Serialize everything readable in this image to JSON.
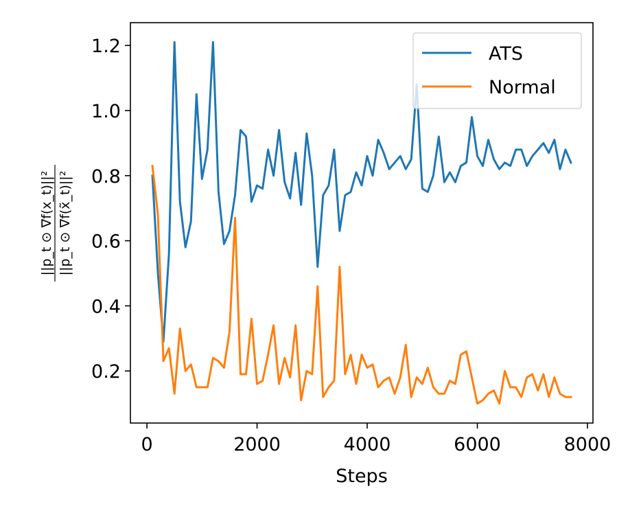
{
  "chart_data": {
    "type": "line",
    "title": "",
    "xlabel": "Steps",
    "ylabel_parts": {
      "numerator": "||p_t ⊙ ∇f(x_t)||²",
      "denominator": "||p_t ⊙ ∇f(x̃_t)||²"
    },
    "xlim": [
      -300,
      8100
    ],
    "ylim": [
      0.04,
      1.27
    ],
    "xticks": [
      0,
      2000,
      4000,
      6000,
      8000
    ],
    "xtick_labels": [
      "0",
      "2000",
      "4000",
      "6000",
      "8000"
    ],
    "yticks": [
      0.2,
      0.4,
      0.6,
      0.8,
      1.0,
      1.2
    ],
    "ytick_labels": [
      "0.2",
      "0.4",
      "0.6",
      "0.8",
      "1.0",
      "1.2"
    ],
    "legend_position": "top-right",
    "series": [
      {
        "name": "ATS",
        "color": "#1f77b4",
        "x": [
          100,
          200,
          300,
          400,
          500,
          600,
          700,
          800,
          900,
          1000,
          1100,
          1200,
          1300,
          1400,
          1500,
          1600,
          1700,
          1800,
          1900,
          2000,
          2100,
          2200,
          2300,
          2400,
          2500,
          2600,
          2700,
          2800,
          2900,
          3000,
          3100,
          3200,
          3300,
          3400,
          3500,
          3600,
          3700,
          3800,
          3900,
          4000,
          4100,
          4200,
          4300,
          4400,
          4500,
          4600,
          4700,
          4800,
          4900,
          5000,
          5100,
          5200,
          5300,
          5400,
          5500,
          5600,
          5700,
          5800,
          5900,
          6000,
          6100,
          6200,
          6300,
          6400,
          6500,
          6600,
          6700,
          6800,
          6900,
          7000,
          7100,
          7200,
          7300,
          7400,
          7500,
          7600,
          7700
        ],
        "y": [
          0.8,
          0.5,
          0.29,
          0.56,
          1.21,
          0.72,
          0.58,
          0.66,
          1.05,
          0.79,
          0.88,
          1.21,
          0.75,
          0.59,
          0.63,
          0.74,
          0.94,
          0.92,
          0.72,
          0.77,
          0.76,
          0.88,
          0.8,
          0.94,
          0.78,
          0.73,
          0.87,
          0.71,
          0.93,
          0.8,
          0.52,
          0.74,
          0.77,
          0.88,
          0.63,
          0.74,
          0.75,
          0.81,
          0.77,
          0.86,
          0.8,
          0.91,
          0.87,
          0.82,
          0.84,
          0.86,
          0.82,
          0.85,
          1.08,
          0.76,
          0.75,
          0.8,
          0.92,
          0.78,
          0.81,
          0.78,
          0.83,
          0.84,
          0.98,
          0.86,
          0.83,
          0.91,
          0.85,
          0.82,
          0.84,
          0.83,
          0.88,
          0.88,
          0.83,
          0.86,
          0.88,
          0.9,
          0.87,
          0.91,
          0.82,
          0.88,
          0.84
        ]
      },
      {
        "name": "Normal",
        "color": "#ff7f0e",
        "x": [
          100,
          200,
          300,
          400,
          500,
          600,
          700,
          800,
          900,
          1000,
          1100,
          1200,
          1300,
          1400,
          1500,
          1600,
          1700,
          1800,
          1900,
          2000,
          2100,
          2200,
          2300,
          2400,
          2500,
          2600,
          2700,
          2800,
          2900,
          3000,
          3100,
          3200,
          3300,
          3400,
          3500,
          3600,
          3700,
          3800,
          3900,
          4000,
          4100,
          4200,
          4300,
          4400,
          4500,
          4600,
          4700,
          4800,
          4900,
          5000,
          5100,
          5200,
          5300,
          5400,
          5500,
          5600,
          5700,
          5800,
          5900,
          6000,
          6100,
          6200,
          6300,
          6400,
          6500,
          6600,
          6700,
          6800,
          6900,
          7000,
          7100,
          7200,
          7300,
          7400,
          7500,
          7600,
          7700
        ],
        "y": [
          0.83,
          0.68,
          0.23,
          0.27,
          0.13,
          0.33,
          0.2,
          0.22,
          0.15,
          0.15,
          0.15,
          0.24,
          0.23,
          0.21,
          0.32,
          0.67,
          0.19,
          0.19,
          0.36,
          0.16,
          0.17,
          0.25,
          0.34,
          0.16,
          0.24,
          0.18,
          0.34,
          0.11,
          0.2,
          0.19,
          0.46,
          0.12,
          0.15,
          0.17,
          0.52,
          0.19,
          0.25,
          0.16,
          0.25,
          0.21,
          0.22,
          0.15,
          0.17,
          0.18,
          0.13,
          0.18,
          0.28,
          0.12,
          0.18,
          0.16,
          0.21,
          0.15,
          0.13,
          0.13,
          0.17,
          0.16,
          0.25,
          0.26,
          0.18,
          0.1,
          0.11,
          0.13,
          0.14,
          0.1,
          0.2,
          0.15,
          0.15,
          0.12,
          0.18,
          0.19,
          0.14,
          0.19,
          0.12,
          0.18,
          0.13,
          0.12,
          0.12
        ]
      }
    ]
  }
}
